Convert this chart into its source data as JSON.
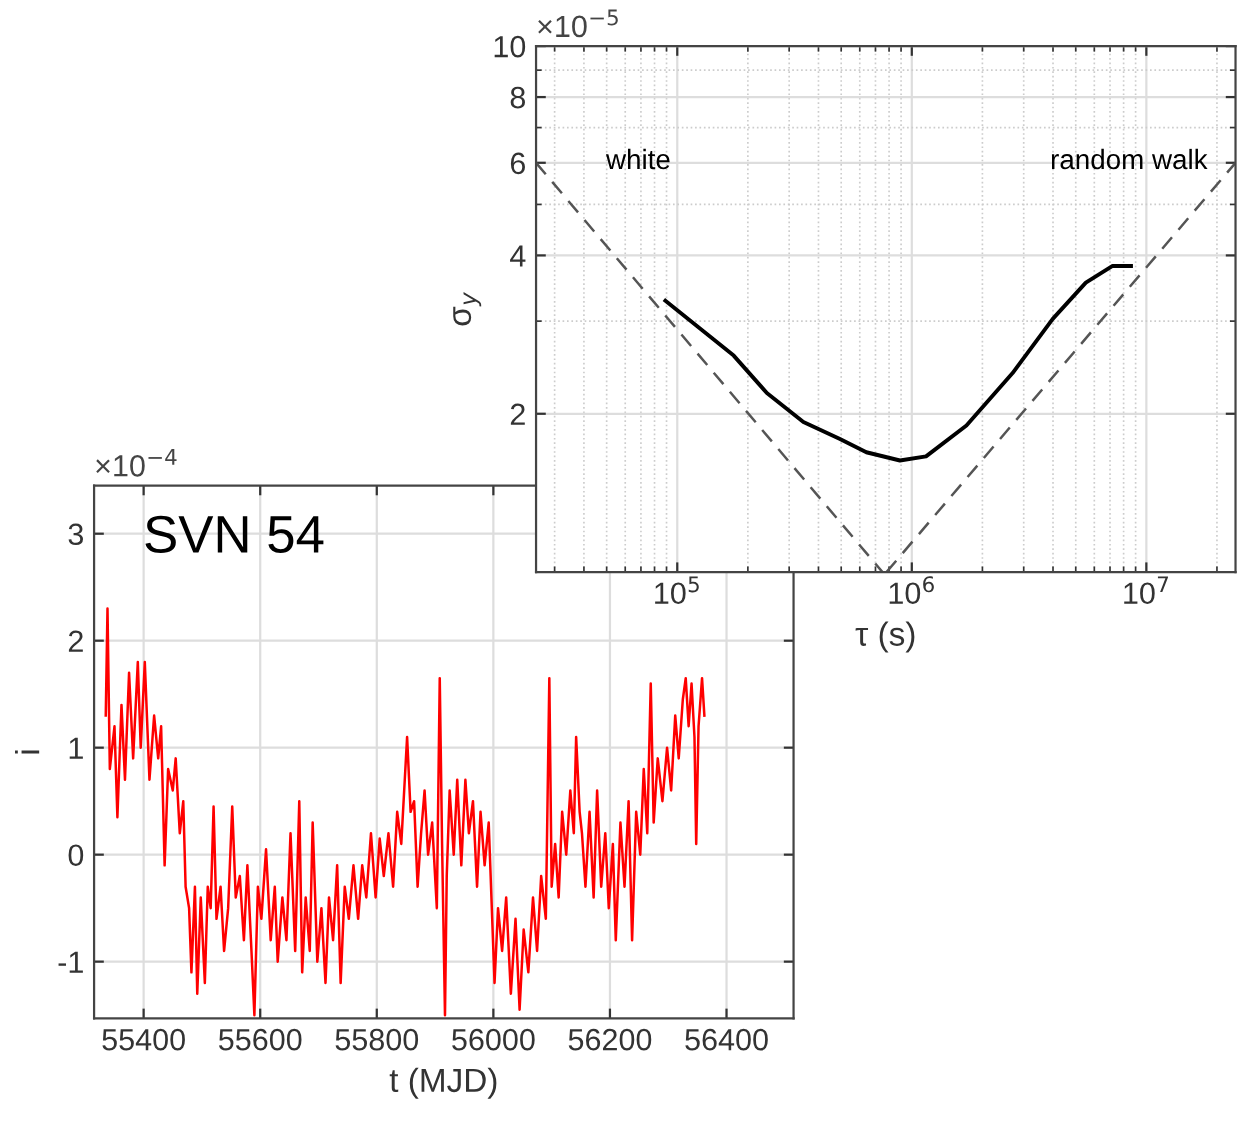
{
  "chart_data": [
    {
      "type": "line",
      "log": "xy",
      "xlabel": "τ (s)",
      "ylabel": "σ$_{y}$",
      "xlim": [
        25000,
        24000000
      ],
      "ylim": [
        1,
        10
      ],
      "xticks": [
        {
          "value": 100000,
          "label": "10$^{5}$"
        },
        {
          "value": 1000000,
          "label": "10$^{6}$"
        },
        {
          "value": 10000000,
          "label": "10$^{7}$"
        }
      ],
      "yticks": [
        2,
        4,
        6,
        8,
        10
      ],
      "grid": true,
      "series": [
        {
          "color": "#000000",
          "x": [
            89000,
            174000,
            241000,
            345000,
            494000,
            640000,
            890000,
            1150000,
            1710000,
            2690000,
            3990000,
            5520000,
            7180000,
            8600000
          ],
          "values": [
            3.28,
            2.58,
            2.19,
            1.93,
            1.79,
            1.69,
            1.63,
            1.66,
            1.9,
            2.39,
            3.03,
            3.55,
            3.82,
            3.82
          ]
        },
        {
          "color": "#555555",
          "line_style": "dashed",
          "x": [
            25000,
            750000
          ],
          "values": [
            6,
            1
          ]
        },
        {
          "color": "#555555",
          "line_style": "dashed",
          "x": [
            780000,
            24000000
          ],
          "values": [
            1,
            6
          ]
        }
      ],
      "annotations": [
        "×10$^{−5}$",
        "white",
        "random walk"
      ]
    },
    {
      "type": "line",
      "xlabel": "t (MJD)",
      "ylabel": "i",
      "xlim": [
        55315,
        56515
      ],
      "ylim": [
        -1.53,
        3.45
      ],
      "xticks": [
        55400,
        55600,
        55800,
        56000,
        56200,
        56400
      ],
      "yticks": [
        -1,
        0,
        1,
        2,
        3
      ],
      "grid": true,
      "series": [
        {
          "color": "#ff0000",
          "x": [
            55335,
            55338,
            55342,
            55350,
            55355,
            55362,
            55368,
            55375,
            55382,
            55390,
            55395,
            55402,
            55410,
            55418,
            55425,
            55430,
            55436,
            55442,
            55450,
            55455,
            55462,
            55468,
            55472,
            55478,
            55482,
            55488,
            55492,
            55498,
            55505,
            55510,
            55515,
            55520,
            55525,
            55532,
            55538,
            55545,
            55552,
            55558,
            55565,
            55572,
            55578,
            55585,
            55590,
            55596,
            55602,
            55610,
            55618,
            55625,
            55630,
            55638,
            55645,
            55652,
            55660,
            55667,
            55672,
            55678,
            55685,
            55690,
            55698,
            55705,
            55712,
            55718,
            55725,
            55732,
            55738,
            55745,
            55752,
            55760,
            55768,
            55775,
            55782,
            55790,
            55798,
            55805,
            55812,
            55820,
            55828,
            55835,
            55842,
            55848,
            55852,
            55858,
            55864,
            55870,
            55876,
            55882,
            55888,
            55895,
            55903,
            55908,
            55912,
            55917,
            55920,
            55925,
            55932,
            55938,
            55945,
            55952,
            55958,
            55965,
            55972,
            55978,
            55985,
            55992,
            55998,
            56002,
            56008,
            56015,
            56022,
            56030,
            56038,
            56045,
            56052,
            56060,
            56068,
            56075,
            56082,
            56090,
            56096,
            56100,
            56106,
            56112,
            56118,
            56125,
            56132,
            56138,
            56142,
            56148,
            56152,
            56158,
            56165,
            56172,
            56178,
            56185,
            56192,
            56198,
            56205,
            56210,
            56218,
            56225,
            56232,
            56238,
            56245,
            56252,
            56258,
            56264,
            56270,
            56275,
            56282,
            56290,
            56298,
            56305,
            56312,
            56318,
            56325,
            56330,
            56335,
            56340,
            56345,
            56348,
            56352,
            56358,
            56362
          ],
          "values": [
            1.3,
            2.3,
            0.8,
            1.2,
            0.35,
            1.4,
            0.7,
            1.7,
            0.9,
            1.8,
            1.0,
            1.8,
            0.7,
            1.3,
            0.9,
            1.2,
            -0.1,
            0.8,
            0.6,
            0.9,
            0.2,
            0.5,
            -0.3,
            -0.5,
            -1.1,
            -0.3,
            -1.3,
            -0.4,
            -1.2,
            -0.3,
            -0.5,
            0.45,
            -0.6,
            -0.3,
            -0.9,
            -0.5,
            0.45,
            -0.4,
            -0.2,
            -0.8,
            -0.1,
            -0.9,
            -1.5,
            -0.3,
            -0.6,
            0.05,
            -0.8,
            -0.3,
            -1.0,
            -0.4,
            -0.8,
            0.2,
            -0.9,
            0.5,
            -1.1,
            -0.4,
            -0.9,
            0.3,
            -1.0,
            -0.5,
            -1.2,
            -0.4,
            -0.8,
            -0.1,
            -1.2,
            -0.3,
            -0.6,
            -0.1,
            -0.6,
            -0.1,
            -0.4,
            0.2,
            -0.4,
            0.15,
            -0.2,
            0.2,
            -0.3,
            0.4,
            0.1,
            0.7,
            1.1,
            0.4,
            0.5,
            -0.3,
            0.2,
            0.6,
            0.0,
            0.3,
            -0.5,
            1.65,
            0.1,
            -1.5,
            -0.2,
            0.6,
            0.0,
            0.7,
            -0.1,
            0.7,
            0.2,
            0.5,
            -0.3,
            0.4,
            -0.1,
            0.3,
            -0.6,
            -1.2,
            -0.5,
            -0.9,
            -0.4,
            -1.3,
            -0.6,
            -1.45,
            -0.7,
            -1.1,
            -0.4,
            -0.9,
            -0.2,
            -0.6,
            1.65,
            -0.3,
            0.1,
            -0.4,
            0.4,
            0.0,
            0.6,
            0.2,
            1.1,
            0.4,
            0.2,
            -0.3,
            0.4,
            -0.4,
            0.6,
            -0.3,
            0.2,
            -0.5,
            0.1,
            -0.8,
            0.3,
            -0.3,
            0.5,
            -0.8,
            0.4,
            0.0,
            0.8,
            0.2,
            1.6,
            0.3,
            0.9,
            0.5,
            1.0,
            0.6,
            1.3,
            0.9,
            1.45,
            1.65,
            1.2,
            1.6,
            1.1,
            0.1,
            1.2,
            1.65,
            1.3
          ]
        }
      ],
      "annotations": [
        "×10$^{−4}$",
        "SVN 54"
      ]
    }
  ]
}
